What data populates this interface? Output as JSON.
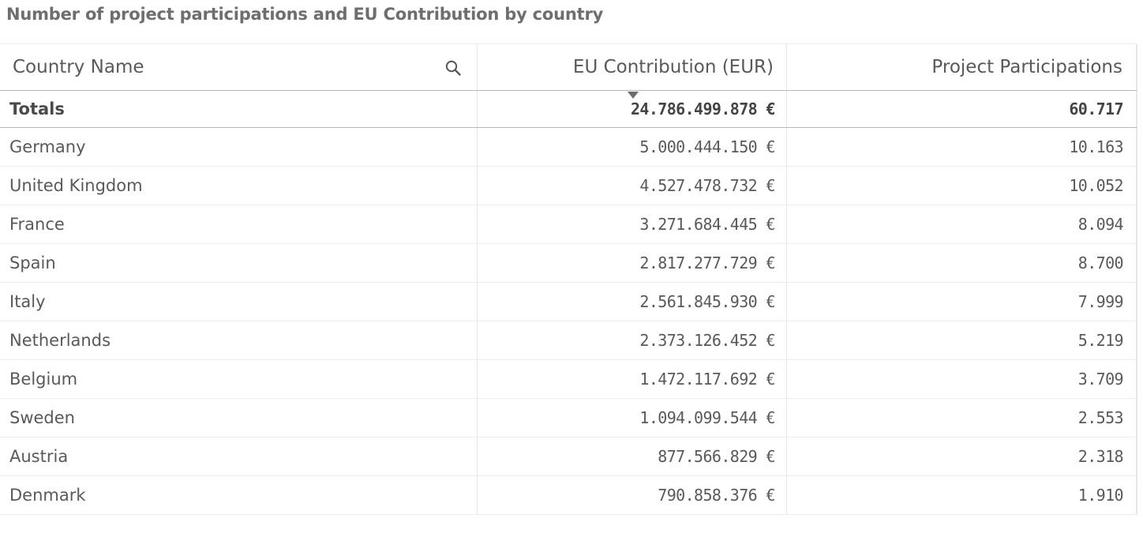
{
  "title": "Number of project participations and EU Contribution by country",
  "columns": {
    "country": "Country Name",
    "contribution": "EU Contribution (EUR)",
    "participations": "Project Participations"
  },
  "totals": {
    "label": "Totals",
    "contribution": "24.786.499.878 €",
    "participations": "60.717"
  },
  "rows": [
    {
      "country": "Germany",
      "contribution": "5.000.444.150 €",
      "participations": "10.163"
    },
    {
      "country": "United Kingdom",
      "contribution": "4.527.478.732 €",
      "participations": "10.052"
    },
    {
      "country": "France",
      "contribution": "3.271.684.445 €",
      "participations": "8.094"
    },
    {
      "country": "Spain",
      "contribution": "2.817.277.729 €",
      "participations": "8.700"
    },
    {
      "country": "Italy",
      "contribution": "2.561.845.930 €",
      "participations": "7.999"
    },
    {
      "country": "Netherlands",
      "contribution": "2.373.126.452 €",
      "participations": "5.219"
    },
    {
      "country": "Belgium",
      "contribution": "1.472.117.692 €",
      "participations": "3.709"
    },
    {
      "country": "Sweden",
      "contribution": "1.094.099.544 €",
      "participations": "2.553"
    },
    {
      "country": "Austria",
      "contribution": "877.566.829 €",
      "participations": "2.318"
    },
    {
      "country": "Denmark",
      "contribution": "790.858.376 €",
      "participations": "1.910"
    }
  ],
  "icons": {
    "search": "search-icon",
    "sort": "sort-descending-indicator"
  },
  "colors": {
    "title": "#6e6e6e",
    "text": "#595959",
    "divider": "#ececec"
  }
}
